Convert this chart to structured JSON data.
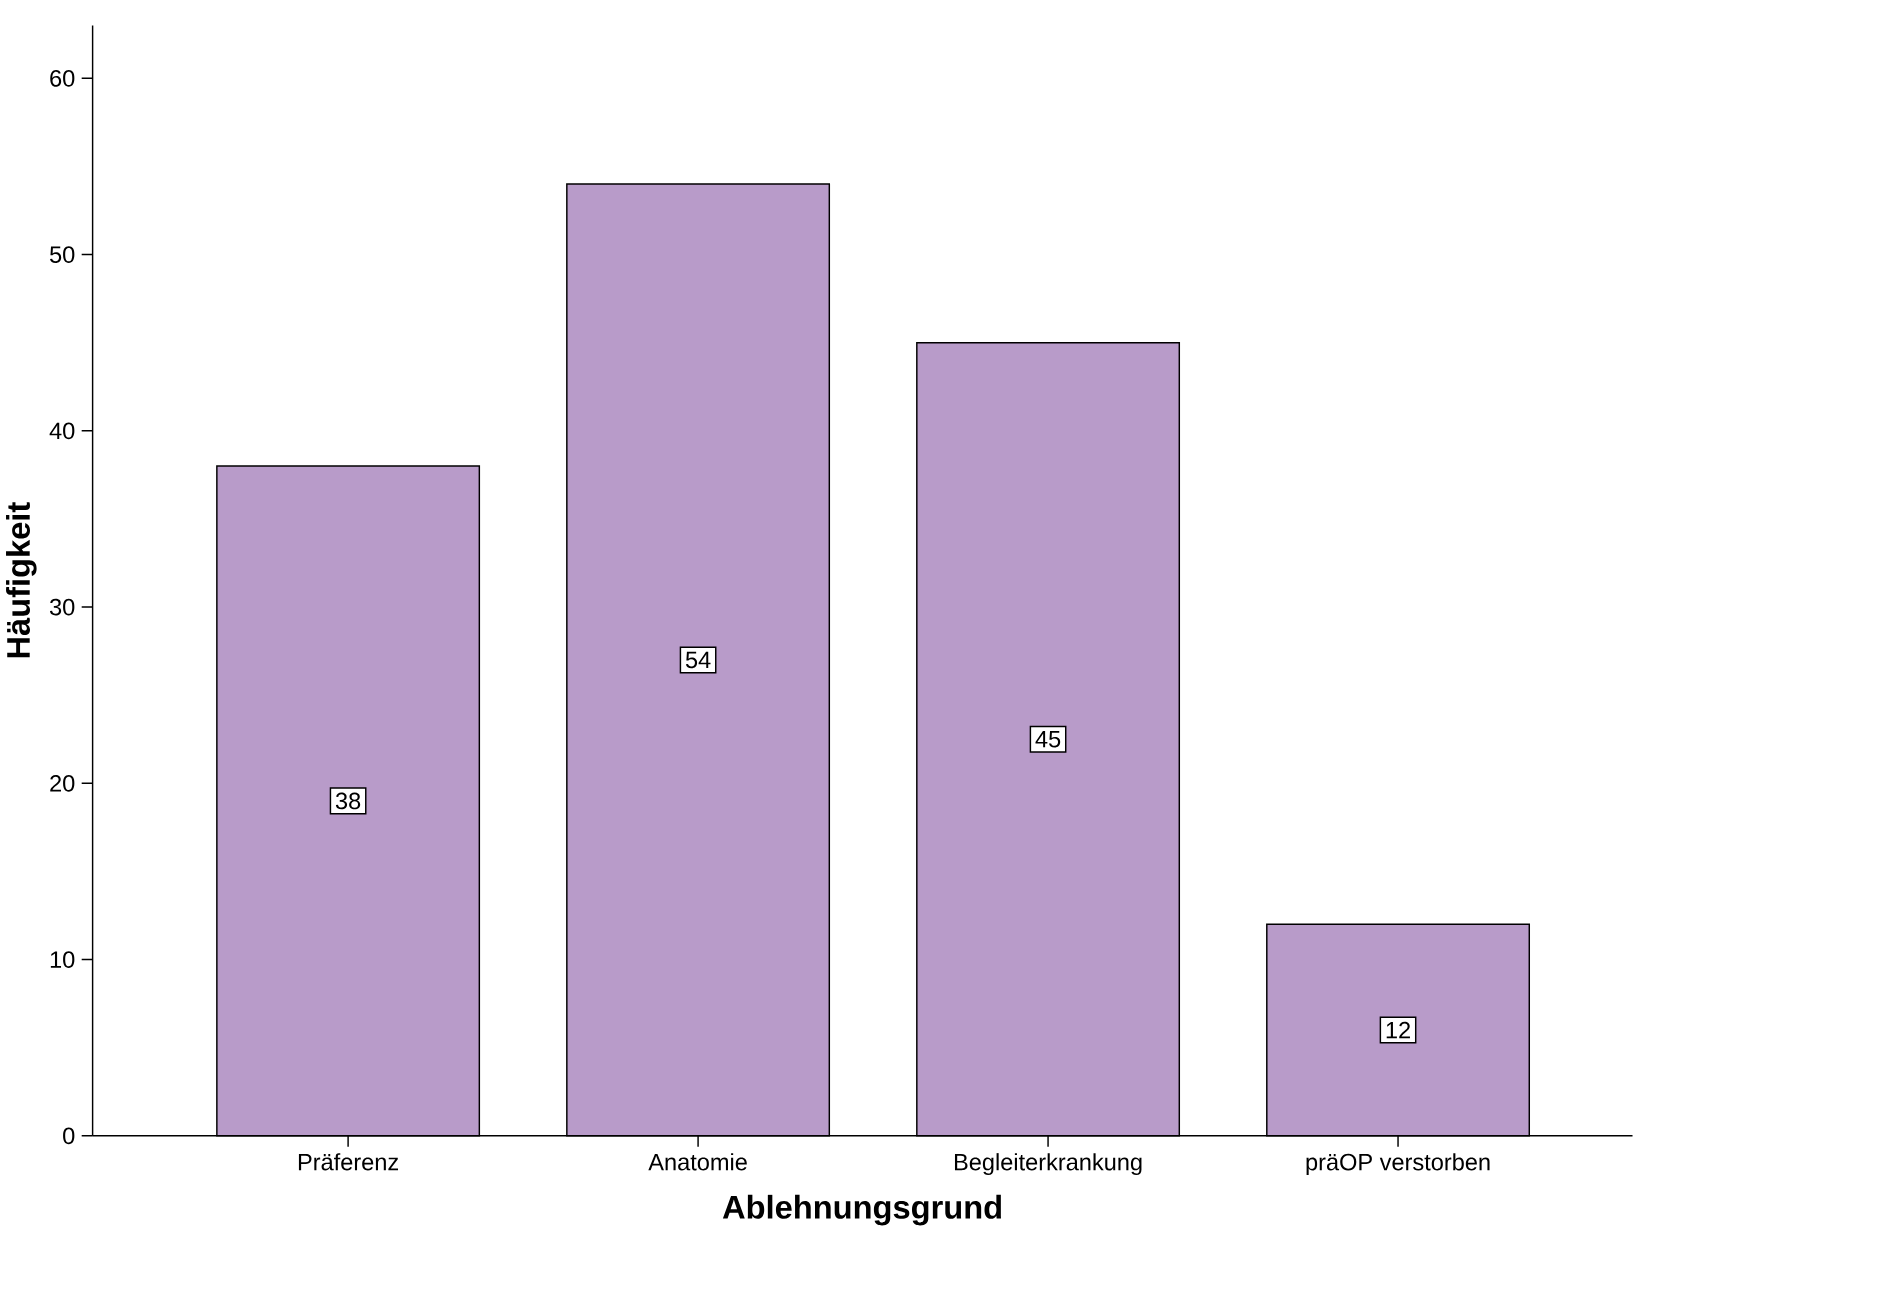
{
  "chart_data": {
    "type": "bar",
    "xlabel": "Ablehnungsgrund",
    "ylabel": "Häufigkeit",
    "categories": [
      "Präferenz",
      "Anatomie",
      "Begleiterkrankung",
      "präOP verstorben"
    ],
    "values": [
      38,
      54,
      45,
      12
    ],
    "color": "#b89bc9",
    "ylim": [
      0,
      63
    ],
    "yticks": [
      0,
      10,
      20,
      30,
      40,
      50,
      60
    ],
    "grid": false,
    "data_labels": true
  }
}
